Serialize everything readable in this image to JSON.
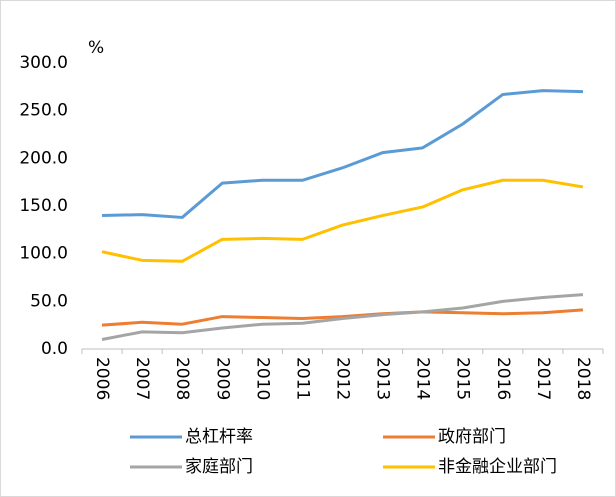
{
  "chart_data": {
    "type": "line",
    "y_label": "%",
    "categories": [
      "2006",
      "2007",
      "2008",
      "2009",
      "2010",
      "2011",
      "2012",
      "2013",
      "2014",
      "2015",
      "2016",
      "2017",
      "2018"
    ],
    "series": [
      {
        "name": "总杠杆率",
        "color": "#5b9bd5",
        "values": [
          140,
          141,
          138,
          174,
          177,
          177,
          190,
          206,
          211,
          236,
          267,
          271,
          270
        ]
      },
      {
        "name": "政府部门",
        "color": "#ed7d31",
        "values": [
          25,
          28,
          26,
          34,
          33,
          32,
          34,
          37,
          39,
          38,
          37,
          38,
          41
        ]
      },
      {
        "name": "家庭部门",
        "color": "#a5a5a5",
        "values": [
          10,
          18,
          17,
          22,
          26,
          27,
          32,
          36,
          39,
          43,
          50,
          54,
          57
        ]
      },
      {
        "name": "非金融企业部门",
        "color": "#ffc000",
        "values": [
          102,
          93,
          92,
          115,
          116,
          115,
          130,
          140,
          149,
          167,
          177,
          177,
          170
        ]
      }
    ],
    "ylim": [
      0,
      300
    ],
    "yticks": [
      {
        "value": 0,
        "label": "0.0"
      },
      {
        "value": 50,
        "label": "50.0"
      },
      {
        "value": 100,
        "label": "100.0"
      },
      {
        "value": 150,
        "label": "150.0"
      },
      {
        "value": 200,
        "label": "200.0"
      },
      {
        "value": 250,
        "label": "250.0"
      },
      {
        "value": 300,
        "label": "300.0"
      }
    ]
  }
}
